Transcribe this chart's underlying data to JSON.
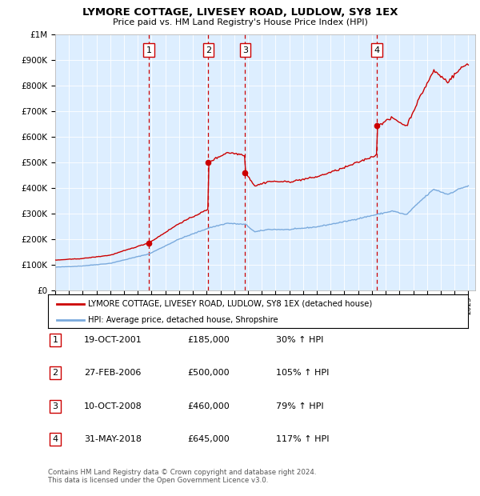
{
  "title": "LYMORE COTTAGE, LIVESEY ROAD, LUDLOW, SY8 1EX",
  "subtitle": "Price paid vs. HM Land Registry's House Price Index (HPI)",
  "legend_line1": "LYMORE COTTAGE, LIVESEY ROAD, LUDLOW, SY8 1EX (detached house)",
  "legend_line2": "HPI: Average price, detached house, Shropshire",
  "footer": "Contains HM Land Registry data © Crown copyright and database right 2024.\nThis data is licensed under the Open Government Licence v3.0.",
  "sale_color": "#cc0000",
  "hpi_color": "#7aaadd",
  "vline_color": "#cc0000",
  "bg_color": "#ddeeff",
  "sale_prices": [
    185000,
    500000,
    460000,
    645000
  ],
  "sale_labels": [
    "1",
    "2",
    "3",
    "4"
  ],
  "sale_table": [
    {
      "num": "1",
      "date": "19-OCT-2001",
      "price": "£185,000",
      "pct": "30% ↑ HPI"
    },
    {
      "num": "2",
      "date": "27-FEB-2006",
      "price": "£500,000",
      "pct": "105% ↑ HPI"
    },
    {
      "num": "3",
      "date": "10-OCT-2008",
      "price": "£460,000",
      "pct": "79% ↑ HPI"
    },
    {
      "num": "4",
      "date": "31-MAY-2018",
      "price": "£645,000",
      "pct": "117% ↑ HPI"
    }
  ],
  "ylim": [
    0,
    1000000
  ],
  "yticks": [
    0,
    100000,
    200000,
    300000,
    400000,
    500000,
    600000,
    700000,
    800000,
    900000,
    1000000
  ],
  "ytick_labels": [
    "£0",
    "£100K",
    "£200K",
    "£300K",
    "£400K",
    "£500K",
    "£600K",
    "£700K",
    "£800K",
    "£900K",
    "£1M"
  ]
}
